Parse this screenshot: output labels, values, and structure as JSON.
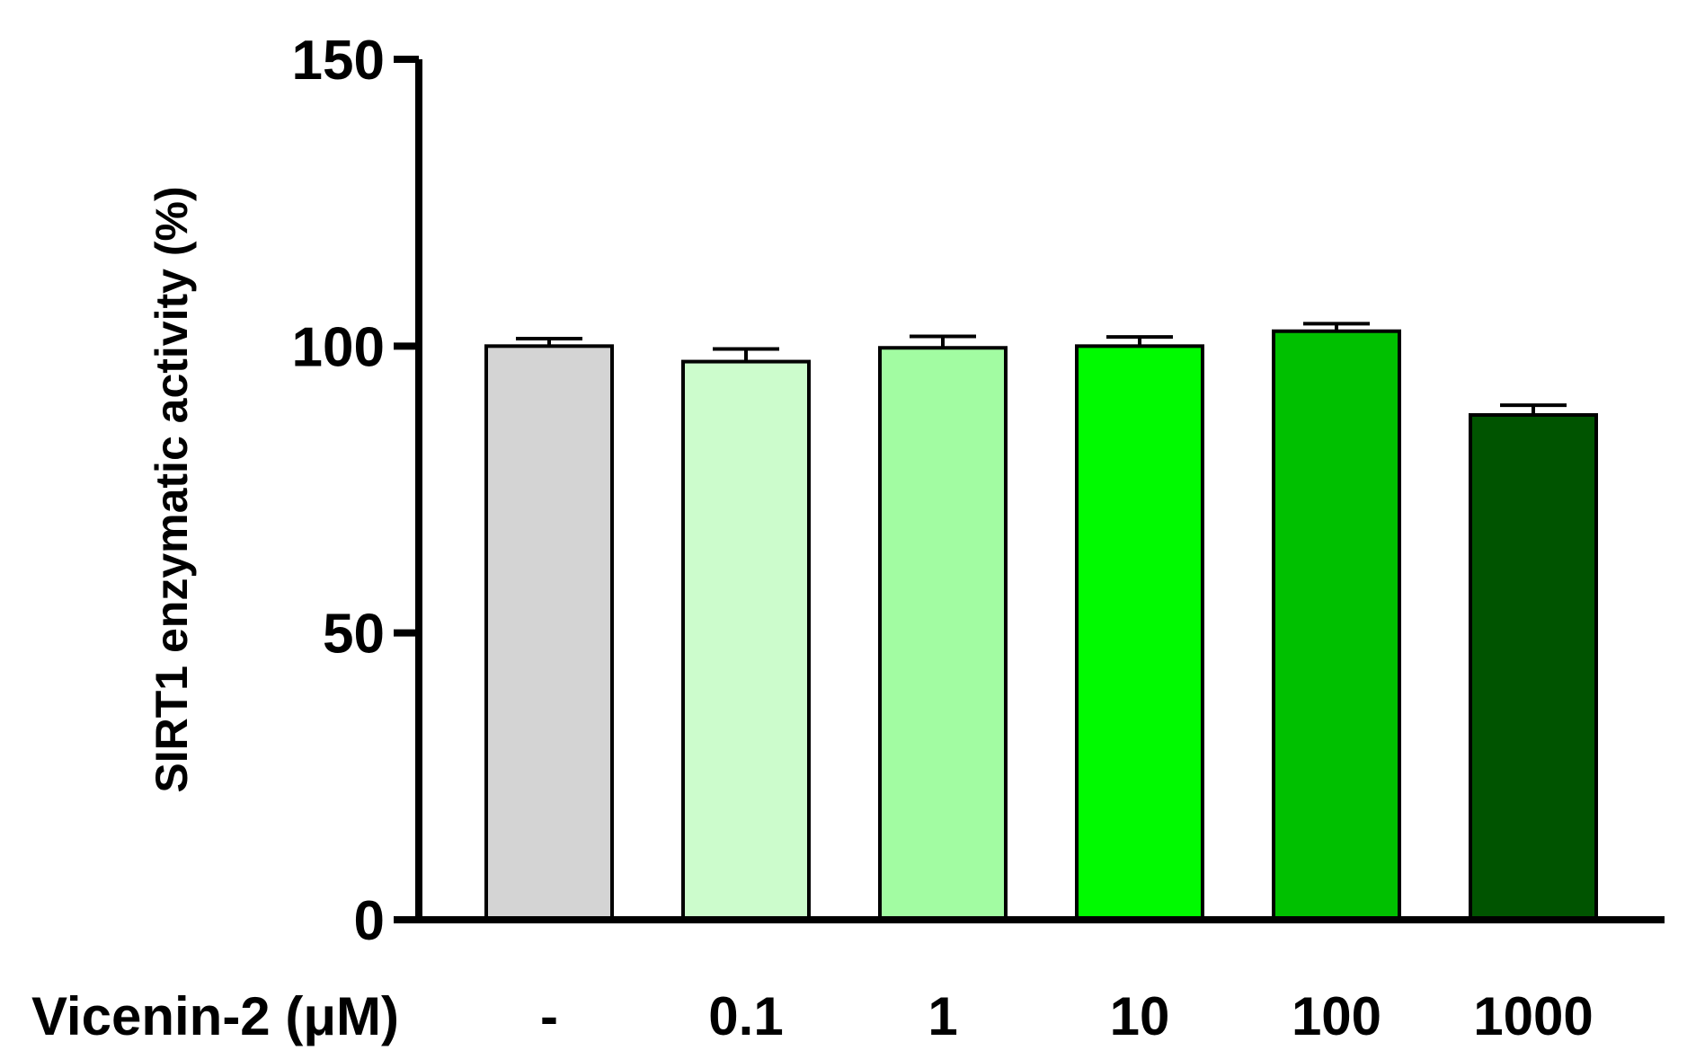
{
  "chart_data": {
    "type": "bar",
    "title": "",
    "ylabel": "SIRT1 enzymatic activity (%)",
    "xlabel": "Vicenin-2 (μM)",
    "categories": [
      "-",
      "0.1",
      "1",
      "10",
      "100",
      "1000"
    ],
    "values": [
      100,
      97.3,
      99.7,
      100,
      102.6,
      88
    ],
    "error_upper": [
      101.3,
      99.5,
      101.7,
      101.6,
      103.9,
      89.7
    ],
    "colors": [
      "#d4d4d4",
      "#ccfccc",
      "#a2fca2",
      "#00fa00",
      "#00c000",
      "#005400"
    ],
    "ylim": [
      0,
      150
    ],
    "yticks": [
      {
        "value": 0,
        "label": "0"
      },
      {
        "value": 50,
        "label": "50"
      },
      {
        "value": 100,
        "label": "100"
      },
      {
        "value": 150,
        "label": "150"
      }
    ],
    "grid": false,
    "legend": "none"
  }
}
